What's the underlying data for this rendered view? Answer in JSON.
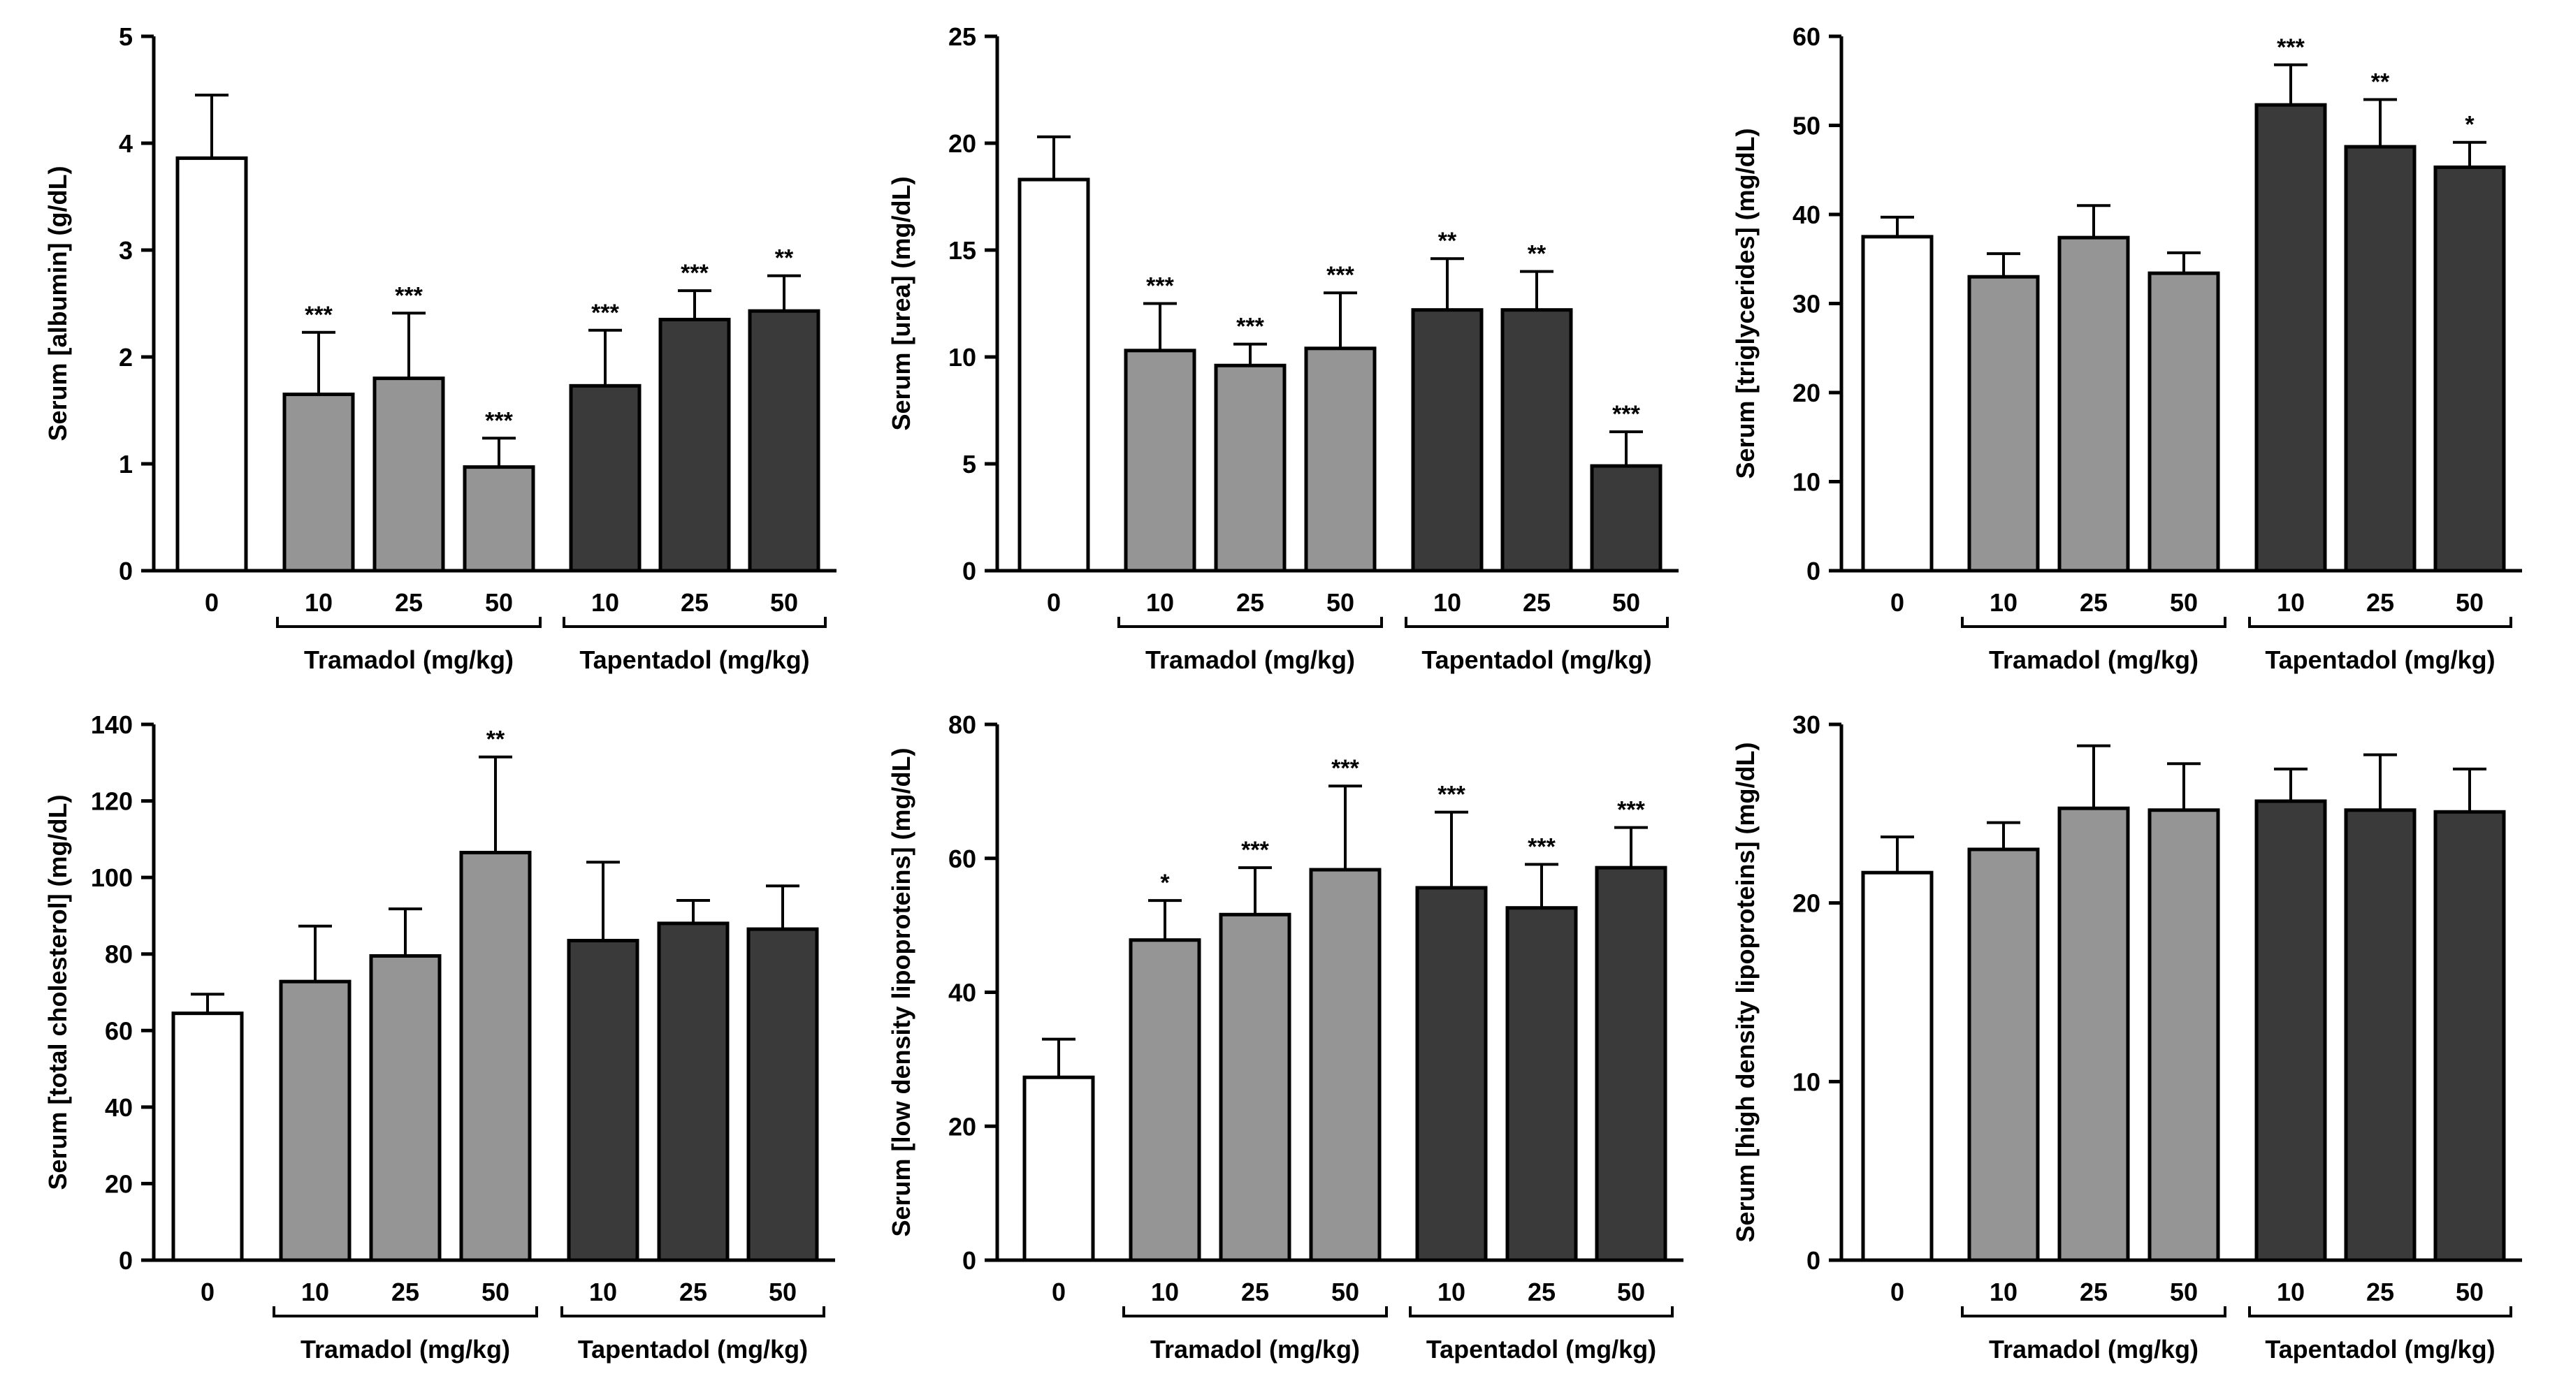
{
  "colors": {
    "control": "#ffffff",
    "tramadol": "#959595",
    "tapentadol": "#3a3a3a",
    "stroke": "#000000"
  },
  "chart_data": [
    {
      "type": "bar",
      "ylabel": "Serum [albumin] (g/dL)",
      "ylim": [
        0,
        5
      ],
      "yticks": [
        0,
        1,
        2,
        3,
        4,
        5
      ],
      "categories": [
        "0",
        "10",
        "25",
        "50",
        "10",
        "25",
        "50"
      ],
      "groups": [
        "control",
        "tramadol",
        "tramadol",
        "tramadol",
        "tapentadol",
        "tapentadol",
        "tapentadol"
      ],
      "values": [
        3.86,
        1.65,
        1.8,
        0.97,
        1.73,
        2.35,
        2.43
      ],
      "errors": [
        0.59,
        0.58,
        0.61,
        0.27,
        0.52,
        0.27,
        0.33
      ],
      "significance": [
        "",
        "***",
        "***",
        "***",
        "***",
        "***",
        "**"
      ],
      "group_labels": [
        "Tramadol (mg/kg)",
        "Tapentadol (mg/kg)"
      ]
    },
    {
      "type": "bar",
      "ylabel": "Serum [urea] (mg/dL)",
      "ylim": [
        0,
        25
      ],
      "yticks": [
        0,
        5,
        10,
        15,
        20,
        25
      ],
      "categories": [
        "0",
        "10",
        "25",
        "50",
        "10",
        "25",
        "50"
      ],
      "groups": [
        "control",
        "tramadol",
        "tramadol",
        "tramadol",
        "tapentadol",
        "tapentadol",
        "tapentadol"
      ],
      "values": [
        18.3,
        10.3,
        9.6,
        10.4,
        12.2,
        12.2,
        4.9
      ],
      "errors": [
        2.0,
        2.2,
        1.0,
        2.6,
        2.4,
        1.8,
        1.6
      ],
      "significance": [
        "",
        "***",
        "***",
        "***",
        "**",
        "**",
        "***"
      ],
      "group_labels": [
        "Tramadol (mg/kg)",
        "Tapentadol (mg/kg)"
      ]
    },
    {
      "type": "bar",
      "ylabel": "Serum [triglycerides] (mg/dL)",
      "ylim": [
        0,
        60
      ],
      "yticks": [
        0,
        10,
        20,
        30,
        40,
        50,
        60
      ],
      "categories": [
        "0",
        "10",
        "25",
        "50",
        "10",
        "25",
        "50"
      ],
      "groups": [
        "control",
        "tramadol",
        "tramadol",
        "tramadol",
        "tapentadol",
        "tapentadol",
        "tapentadol"
      ],
      "values": [
        37.5,
        33.0,
        37.4,
        33.4,
        52.3,
        47.6,
        45.3
      ],
      "errors": [
        2.2,
        2.6,
        3.6,
        2.3,
        4.5,
        5.3,
        2.8
      ],
      "significance": [
        "",
        "",
        "",
        "",
        "***",
        "**",
        "*"
      ],
      "group_labels": [
        "Tramadol (mg/kg)",
        "Tapentadol (mg/kg)"
      ]
    },
    {
      "type": "bar",
      "ylabel": "Serum [total cholesterol] (mg/dL)",
      "ylim": [
        0,
        140
      ],
      "yticks": [
        0,
        20,
        40,
        60,
        80,
        100,
        120,
        140
      ],
      "categories": [
        "0",
        "10",
        "25",
        "50",
        "10",
        "25",
        "50"
      ],
      "groups": [
        "control",
        "tramadol",
        "tramadol",
        "tramadol",
        "tapentadol",
        "tapentadol",
        "tapentadol"
      ],
      "values": [
        64.5,
        72.8,
        79.5,
        106.5,
        83.5,
        88.0,
        86.5
      ],
      "errors": [
        5.0,
        14.5,
        12.3,
        25.0,
        20.5,
        6.0,
        11.3
      ],
      "significance": [
        "",
        "",
        "",
        "**",
        "",
        "",
        ""
      ],
      "group_labels": [
        "Tramadol (mg/kg)",
        "Tapentadol (mg/kg)"
      ]
    },
    {
      "type": "bar",
      "ylabel": "Serum [low density lipoproteins] (mg/dL)",
      "ylim": [
        0,
        80
      ],
      "yticks": [
        0,
        20,
        40,
        60,
        80
      ],
      "categories": [
        "0",
        "10",
        "25",
        "50",
        "10",
        "25",
        "50"
      ],
      "groups": [
        "control",
        "tramadol",
        "tramadol",
        "tramadol",
        "tapentadol",
        "tapentadol",
        "tapentadol"
      ],
      "values": [
        27.3,
        47.8,
        51.6,
        58.3,
        55.6,
        52.6,
        58.6
      ],
      "errors": [
        5.7,
        5.9,
        7.0,
        12.5,
        11.3,
        6.5,
        6.0
      ],
      "significance": [
        "",
        "*",
        "***",
        "***",
        "***",
        "***",
        "***"
      ],
      "group_labels": [
        "Tramadol (mg/kg)",
        "Tapentadol (mg/kg)"
      ]
    },
    {
      "type": "bar",
      "ylabel": "Serum [high density lipoproteins] (mg/dL)",
      "ylim": [
        0,
        30
      ],
      "yticks": [
        0,
        10,
        20,
        30
      ],
      "categories": [
        "0",
        "10",
        "25",
        "50",
        "10",
        "25",
        "50"
      ],
      "groups": [
        "control",
        "tramadol",
        "tramadol",
        "tramadol",
        "tapentadol",
        "tapentadol",
        "tapentadol"
      ],
      "values": [
        21.7,
        23.0,
        25.3,
        25.2,
        25.7,
        25.2,
        25.1
      ],
      "errors": [
        2.0,
        1.5,
        3.5,
        2.6,
        1.8,
        3.1,
        2.4
      ],
      "significance": [
        "",
        "",
        "",
        "",
        "",
        "",
        ""
      ],
      "group_labels": [
        "Tramadol (mg/kg)",
        "Tapentadol (mg/kg)"
      ]
    }
  ]
}
